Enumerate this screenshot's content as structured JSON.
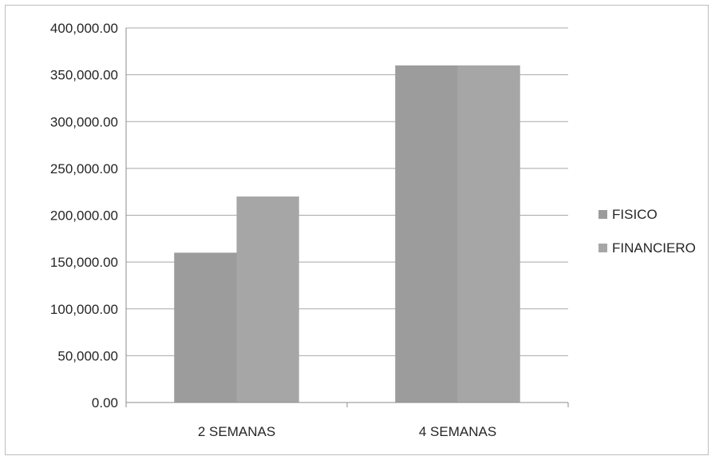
{
  "chart_data": {
    "type": "bar",
    "categories": [
      "2 SEMANAS",
      "4 SEMANAS"
    ],
    "series": [
      {
        "name": "FISICO",
        "values": [
          160000,
          360000
        ],
        "color": "#9c9c9c"
      },
      {
        "name": "FINANCIERO",
        "values": [
          220000,
          360000
        ],
        "color": "#a6a6a6"
      }
    ],
    "ylim": [
      0,
      400000
    ],
    "yticks": [
      0,
      50000,
      100000,
      150000,
      200000,
      250000,
      300000,
      350000,
      400000
    ],
    "ytick_labels": [
      "0.00",
      "50,000.00",
      "100,000.00",
      "150,000.00",
      "200,000.00",
      "250,000.00",
      "300,000.00",
      "350,000.00",
      "400,000.00"
    ],
    "grid": true,
    "legend_position": "right",
    "colors": {
      "grid": "#a8a8a8",
      "axis": "#8c8c8c"
    }
  }
}
